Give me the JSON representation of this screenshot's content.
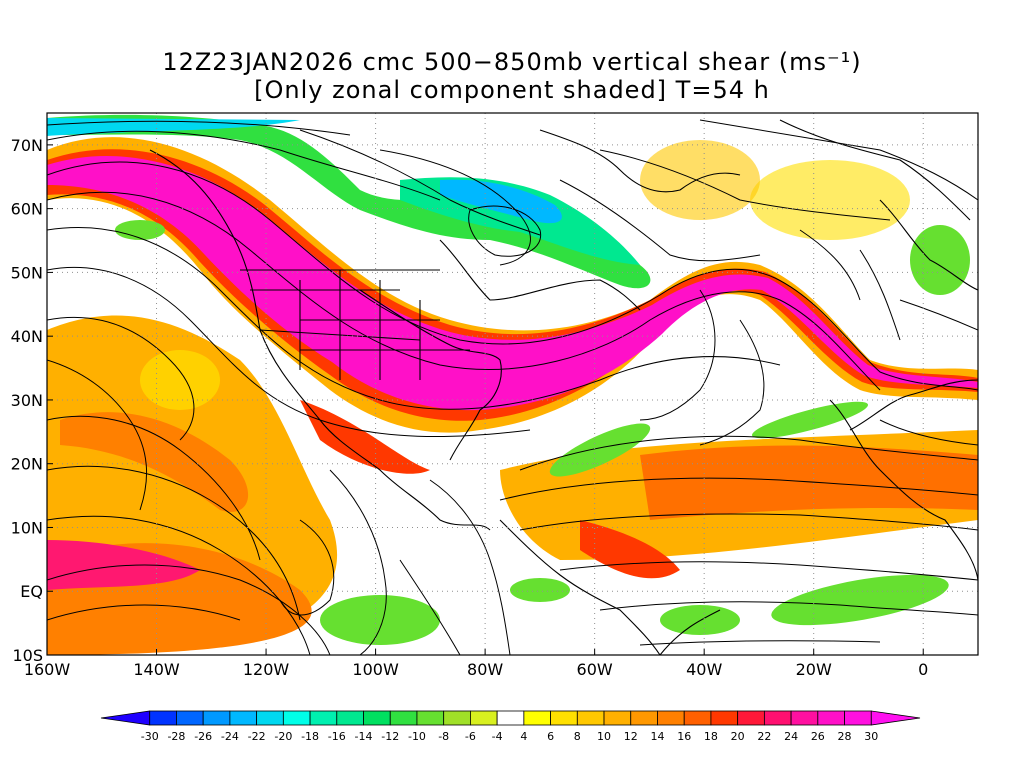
{
  "title": {
    "line1": "12Z23JAN2026 cmc 500−850mb vertical shear (ms⁻¹)",
    "line2": "[Only zonal component shaded] T=54 h"
  },
  "map": {
    "lon_range": [
      -160,
      10
    ],
    "lat_range": [
      -10,
      75
    ],
    "lon_ticks": [
      {
        "lon": -160,
        "label": "160W"
      },
      {
        "lon": -140,
        "label": "140W"
      },
      {
        "lon": -120,
        "label": "120W"
      },
      {
        "lon": -100,
        "label": "100W"
      },
      {
        "lon": -80,
        "label": "80W"
      },
      {
        "lon": -60,
        "label": "60W"
      },
      {
        "lon": -40,
        "label": "40W"
      },
      {
        "lon": -20,
        "label": "20W"
      },
      {
        "lon": 0,
        "label": "0"
      }
    ],
    "lat_ticks": [
      {
        "lat": -10,
        "label": "10S"
      },
      {
        "lat": 0,
        "label": "EQ"
      },
      {
        "lat": 10,
        "label": "10N"
      },
      {
        "lat": 20,
        "label": "20N"
      },
      {
        "lat": 30,
        "label": "30N"
      },
      {
        "lat": 40,
        "label": "40N"
      },
      {
        "lat": 50,
        "label": "50N"
      },
      {
        "lat": 60,
        "label": "60N"
      },
      {
        "lat": 70,
        "label": "70N"
      }
    ],
    "shaded_variable": "zonal vertical shear",
    "streamlines": true,
    "coastlines": true,
    "gridlines": "dotted"
  },
  "colorbar": {
    "labels": [
      "-30",
      "-28",
      "-26",
      "-24",
      "-22",
      "-20",
      "-18",
      "-16",
      "-14",
      "-12",
      "-10",
      "-8",
      "-6",
      "-4",
      "4",
      "6",
      "8",
      "10",
      "12",
      "14",
      "16",
      "18",
      "20",
      "22",
      "24",
      "26",
      "28",
      "30"
    ],
    "colors": [
      "#1f00ff",
      "#0033ff",
      "#0066ff",
      "#0099ff",
      "#00b8ff",
      "#00d8f0",
      "#00ffe8",
      "#00f0b0",
      "#00e890",
      "#00e060",
      "#30e040",
      "#66e030",
      "#a0e028",
      "#d8f020",
      "#ffffff",
      "#ffff00",
      "#ffe000",
      "#ffc800",
      "#ffb000",
      "#ff9800",
      "#ff8000",
      "#ff6000",
      "#ff3800",
      "#ff1838",
      "#ff1070",
      "#ff10a0",
      "#ff10c8",
      "#ff10e0",
      "#ff10f0"
    ]
  }
}
